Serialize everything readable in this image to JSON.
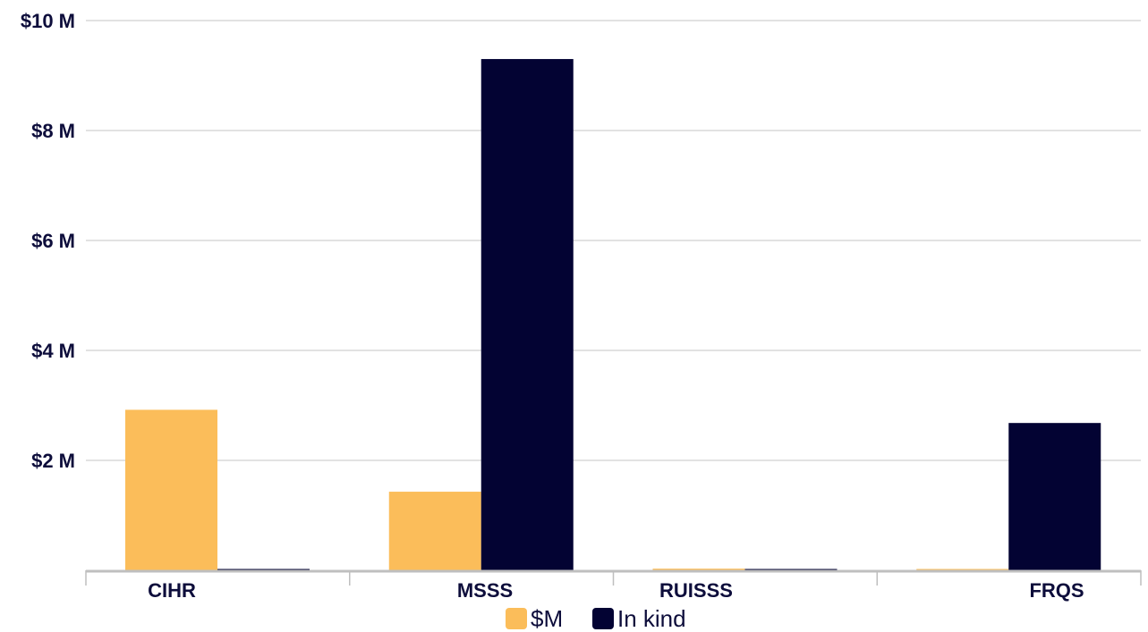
{
  "chart_data": {
    "type": "bar",
    "title": "",
    "xlabel": "",
    "ylabel": "",
    "categories": [
      "CIHR",
      "MSSS",
      "RUISSS",
      "FRQS"
    ],
    "series": [
      {
        "name": "$M",
        "values": [
          2.92,
          1.43,
          0.03,
          0.0
        ],
        "color": "#fbbd5a"
      },
      {
        "name": "In kind",
        "values": [
          0.02,
          9.3,
          0.02,
          2.68
        ],
        "color": "#030333"
      }
    ],
    "ylim": [
      0,
      10
    ],
    "yticks": [
      {
        "value": 2,
        "label": "$2 M"
      },
      {
        "value": 4,
        "label": "$4 M"
      },
      {
        "value": 6,
        "label": "$6 M"
      },
      {
        "value": 8,
        "label": "$8 M"
      },
      {
        "value": 10,
        "label": "$10 M"
      }
    ],
    "grid": true,
    "legend_position": "bottom-center"
  },
  "colors": {
    "gridline": "#d9d9d9",
    "axis": "#bfbfbf",
    "text": "#0d0d3b"
  }
}
